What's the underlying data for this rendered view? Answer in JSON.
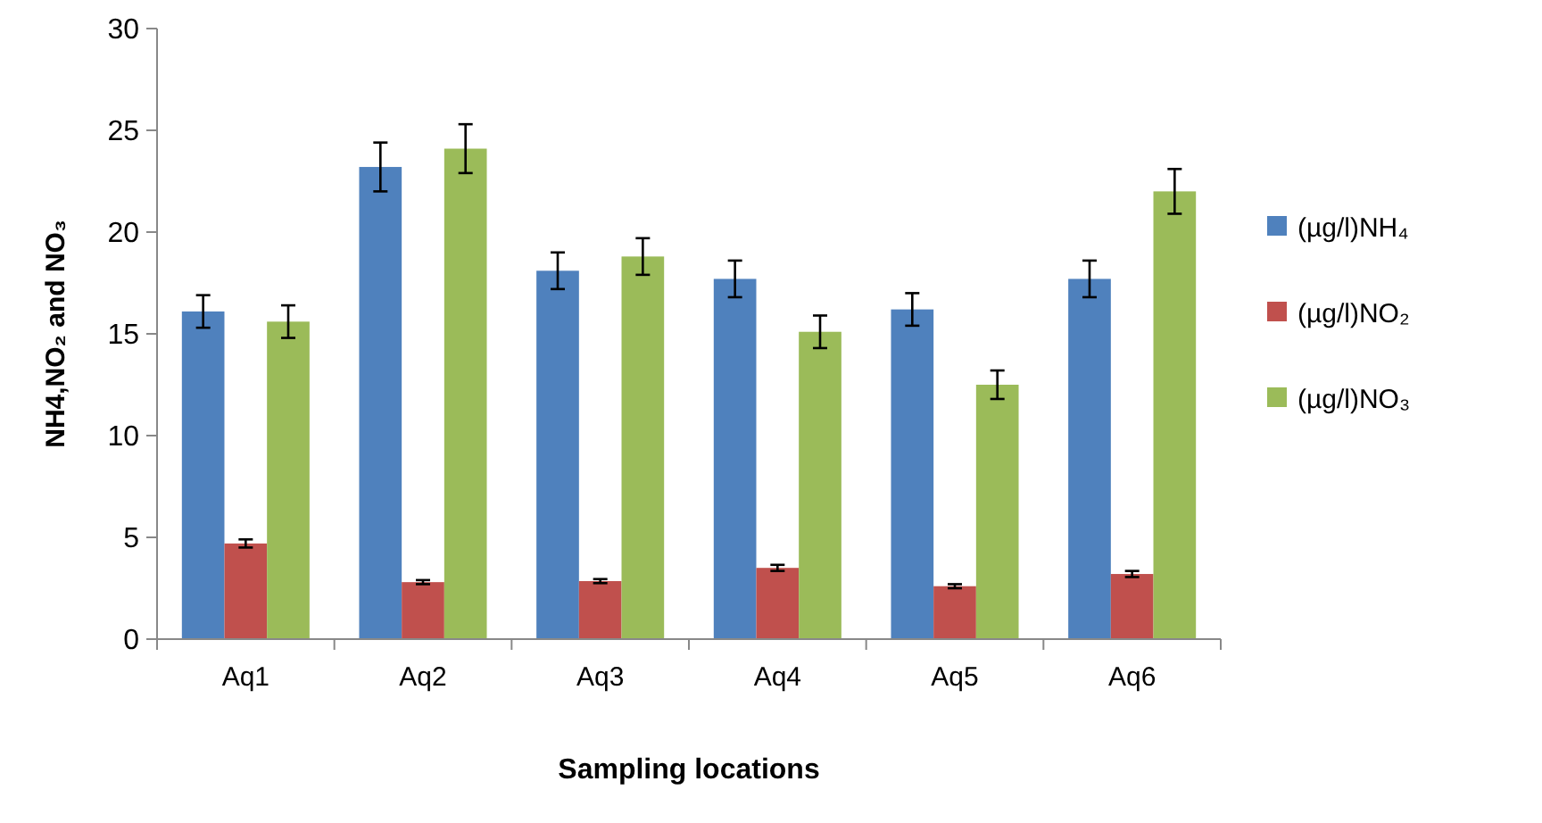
{
  "chart_data": {
    "type": "bar",
    "xlabel": "Sampling locations",
    "ylabel": "NH4,NO₂  and NO₃",
    "categories": [
      "Aq1",
      "Aq2",
      "Aq3",
      "Aq4",
      "Aq5",
      "Aq6"
    ],
    "series": [
      {
        "name": "(µg/l)NH₄",
        "color": "#4f81bd",
        "values": [
          16.1,
          23.2,
          18.1,
          17.7,
          16.2,
          17.7
        ],
        "errors": [
          0.8,
          1.2,
          0.9,
          0.9,
          0.8,
          0.9
        ]
      },
      {
        "name": "(µg/l)NO₂",
        "color": "#c0504d",
        "values": [
          4.7,
          2.8,
          2.85,
          3.5,
          2.6,
          3.2
        ],
        "errors": [
          0.2,
          0.1,
          0.1,
          0.15,
          0.1,
          0.15
        ]
      },
      {
        "name": "(µg/l)NO₃",
        "color": "#9bbb59",
        "values": [
          15.6,
          24.1,
          18.8,
          15.1,
          12.5,
          22.0
        ],
        "errors": [
          0.8,
          1.2,
          0.9,
          0.8,
          0.7,
          1.1
        ]
      }
    ],
    "ylim": [
      0,
      30
    ],
    "yticks": [
      0,
      5,
      10,
      15,
      20,
      25,
      30
    ],
    "grid": false,
    "legend": "right"
  }
}
